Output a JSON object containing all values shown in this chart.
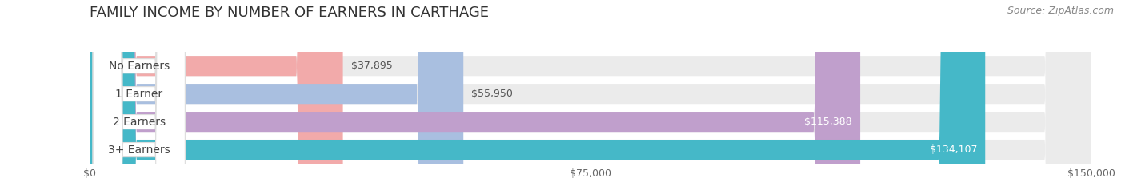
{
  "title": "FAMILY INCOME BY NUMBER OF EARNERS IN CARTHAGE",
  "source": "Source: ZipAtlas.com",
  "categories": [
    "No Earners",
    "1 Earner",
    "2 Earners",
    "3+ Earners"
  ],
  "values": [
    37895,
    55950,
    115388,
    134107
  ],
  "bar_colors": [
    "#f2aaaa",
    "#a9bfe0",
    "#c09fcc",
    "#45b8c8"
  ],
  "value_labels": [
    "$37,895",
    "$55,950",
    "$115,388",
    "$134,107"
  ],
  "xmax": 150000,
  "xticks": [
    0,
    75000,
    150000
  ],
  "xtick_labels": [
    "$0",
    "$75,000",
    "$150,000"
  ],
  "background_color": "#ffffff",
  "bar_bg_color": "#ebebeb",
  "title_fontsize": 13,
  "source_fontsize": 9,
  "label_fontsize": 10,
  "value_fontsize": 9
}
